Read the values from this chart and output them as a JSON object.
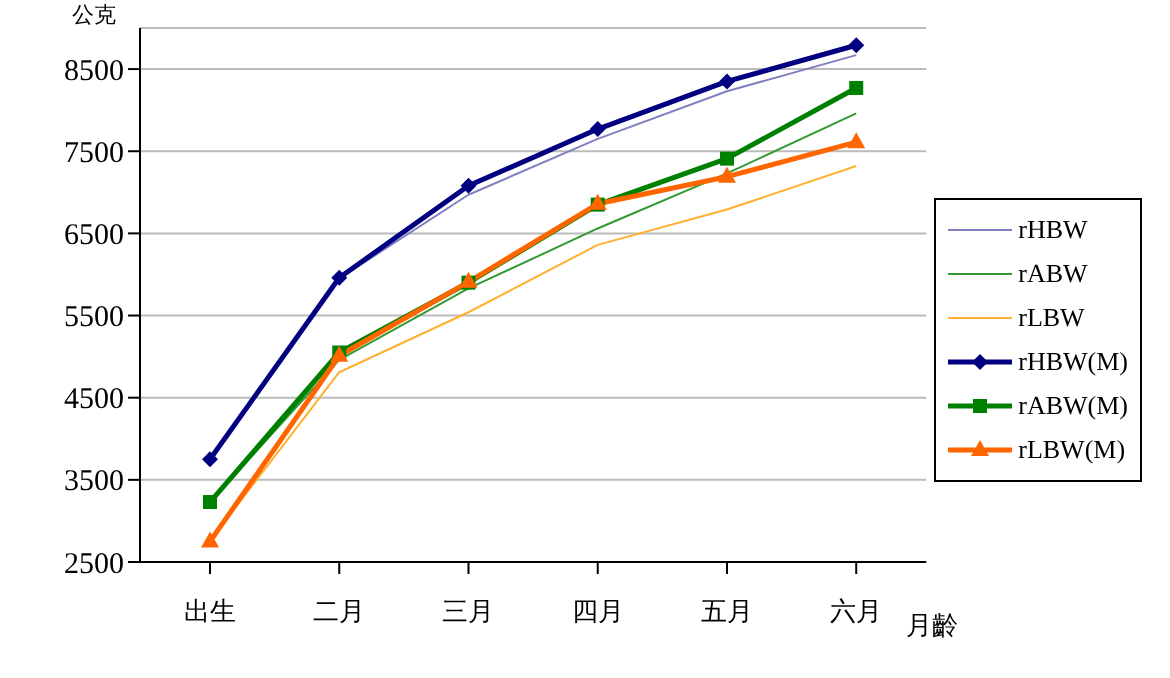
{
  "chart_data": {
    "type": "line",
    "ylabel": "公克",
    "xlabel": "月齡",
    "categories": [
      "出生",
      "二月",
      "三月",
      "四月",
      "五月",
      "六月"
    ],
    "series": [
      {
        "name": "rHBW",
        "color": "#8080c0",
        "marker": "none",
        "values": [
          3750,
          5950,
          6970,
          7650,
          8230,
          8670
        ]
      },
      {
        "name": "rABW",
        "color": "#339933",
        "marker": "none",
        "values": [
          3230,
          4960,
          5830,
          6560,
          7230,
          7960
        ]
      },
      {
        "name": "rLBW",
        "color": "#ffb030",
        "marker": "none",
        "values": [
          2760,
          4810,
          5540,
          6360,
          6790,
          7320
        ]
      },
      {
        "name": "rHBW(M)",
        "color": "#000080",
        "marker": "diamond",
        "values": [
          3750,
          5960,
          7080,
          7770,
          8350,
          8790
        ]
      },
      {
        "name": "rABW(M)",
        "color": "#008000",
        "marker": "square",
        "values": [
          3230,
          5050,
          5900,
          6850,
          7410,
          8270
        ]
      },
      {
        "name": "rLBW(M)",
        "color": "#ff6600",
        "marker": "triangle",
        "values": [
          2750,
          5010,
          5910,
          6860,
          7190,
          7610
        ]
      }
    ],
    "ylim": [
      2500,
      9000
    ],
    "yticks": [
      2500,
      3500,
      4500,
      5500,
      6500,
      7500,
      8500
    ],
    "grid": "y",
    "legend": "right"
  }
}
